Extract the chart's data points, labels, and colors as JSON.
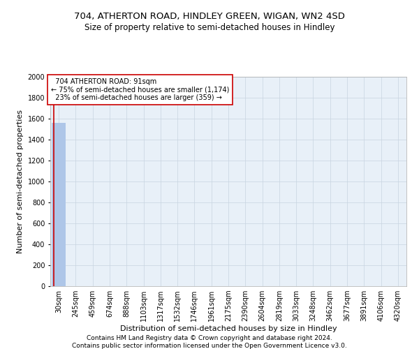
{
  "title_line1": "704, ATHERTON ROAD, HINDLEY GREEN, WIGAN, WN2 4SD",
  "title_line2": "Size of property relative to semi-detached houses in Hindley",
  "xlabel": "Distribution of semi-detached houses by size in Hindley",
  "ylabel": "Number of semi-detached properties",
  "footer_line1": "Contains HM Land Registry data © Crown copyright and database right 2024.",
  "footer_line2": "Contains public sector information licensed under the Open Government Licence v3.0.",
  "categories": [
    "30sqm",
    "245sqm",
    "459sqm",
    "674sqm",
    "888sqm",
    "1103sqm",
    "1317sqm",
    "1532sqm",
    "1746sqm",
    "1961sqm",
    "2175sqm",
    "2390sqm",
    "2604sqm",
    "2819sqm",
    "3033sqm",
    "3248sqm",
    "3462sqm",
    "3677sqm",
    "3891sqm",
    "4106sqm",
    "4320sqm"
  ],
  "values": [
    1560,
    0,
    0,
    0,
    0,
    0,
    0,
    0,
    0,
    0,
    0,
    0,
    0,
    0,
    0,
    0,
    0,
    0,
    0,
    0,
    0
  ],
  "bar_color": "#aec6e8",
  "property_line_x": -0.28,
  "property_sqm": 91,
  "property_label": "704 ATHERTON ROAD: 91sqm",
  "pct_smaller": 75,
  "count_smaller": 1174,
  "pct_larger": 23,
  "count_larger": 359,
  "annotation_box_color": "#cc0000",
  "property_line_color": "#cc0000",
  "ylim": [
    0,
    2000
  ],
  "yticks": [
    0,
    200,
    400,
    600,
    800,
    1000,
    1200,
    1400,
    1600,
    1800,
    2000
  ],
  "grid_color": "#c8d4e0",
  "bg_color": "#e8f0f8",
  "title_fontsize": 9.5,
  "subtitle_fontsize": 8.5,
  "axis_label_fontsize": 8,
  "tick_fontsize": 7,
  "annotation_fontsize": 7,
  "footer_fontsize": 6.5
}
